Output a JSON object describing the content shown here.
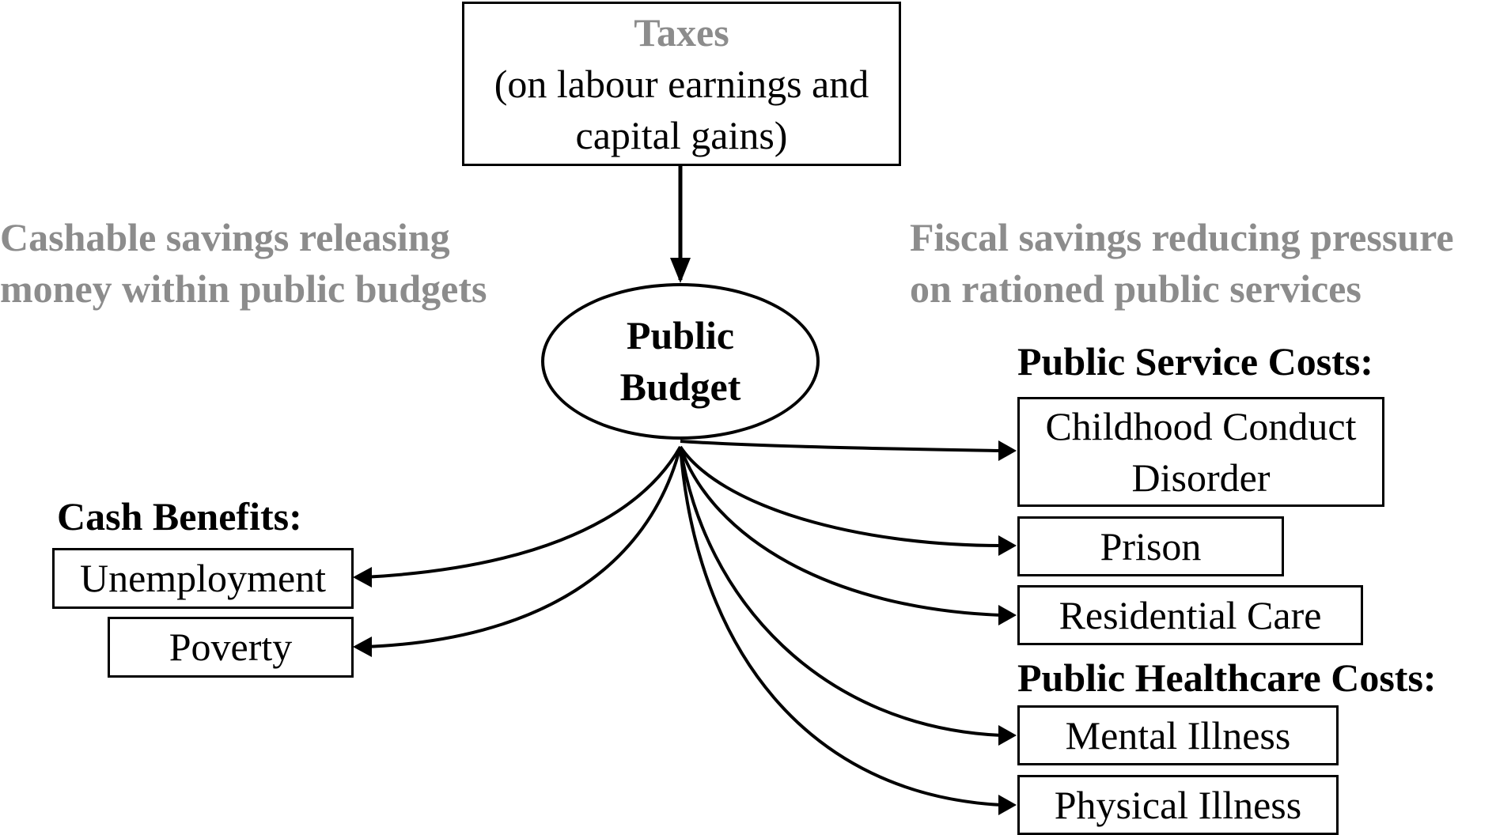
{
  "taxes": {
    "title": "Taxes",
    "line2": "(on labour earnings and",
    "line3": "capital gains)"
  },
  "left_note": {
    "line1": "Cashable savings releasing",
    "line2": "money within public budgets"
  },
  "right_note": {
    "line1": "Fiscal savings reducing pressure",
    "line2": "on rationed public services"
  },
  "budget": {
    "line1": "Public",
    "line2": "Budget"
  },
  "cash_benefits": {
    "heading": "Cash Benefits:",
    "items": [
      "Unemployment",
      "Poverty"
    ]
  },
  "public_service": {
    "heading": "Public Service Costs:",
    "items": [
      "Childhood Conduct\nDisorder",
      "Prison",
      "Residential Care"
    ],
    "childhood_line1": "Childhood Conduct",
    "childhood_line2": "Disorder"
  },
  "public_healthcare": {
    "heading": "Public Healthcare Costs:",
    "items": [
      "Mental Illness",
      "Physical Illness"
    ]
  }
}
